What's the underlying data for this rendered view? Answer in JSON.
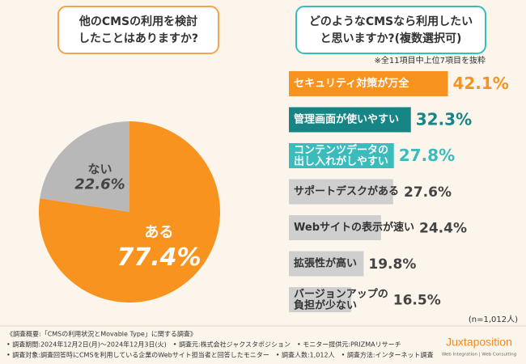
{
  "chart_data": [
    {
      "type": "pie",
      "title": [
        "他のCMSの利用を検討",
        "したことはありますか?"
      ],
      "categories": [
        "ある",
        "ない"
      ],
      "values": [
        77.4,
        22.6
      ],
      "value_labels": [
        "77.4%",
        "22.6%"
      ],
      "colors": [
        "#f7931e",
        "#b8b8b8"
      ]
    },
    {
      "type": "hbar",
      "title": [
        "どのようなCMSなら利用したい",
        "と思いますか?(複数選択可)"
      ],
      "note": "※全11項目中上位7項目を抜粋",
      "categories": [
        "セキュリティ対策が万全",
        "管理画面が使いやすい",
        "コンテンツデータの\n出し入れがしやすい",
        "サポートデスクがある",
        "Webサイトの表示が速い",
        "拡張性が高い",
        "バージョンアップの\n負担が少ない"
      ],
      "values": [
        42.1,
        32.3,
        27.8,
        27.6,
        24.4,
        19.8,
        16.5
      ],
      "value_labels": [
        "42.1%",
        "32.3%",
        "27.8%",
        "27.6%",
        "24.4%",
        "19.8%",
        "16.5%"
      ],
      "colors": [
        "#f7931e",
        "#178585",
        "#3bbcbc",
        "#cfcfcf",
        "#cfcfcf",
        "#cfcfcf",
        "#cfcfcf"
      ],
      "xlim": [
        0,
        45
      ],
      "sample": "(n=1,012人)"
    }
  ],
  "footer": [
    "《調査概要:「CMSの利用状況とMovable Type」に関する調査》",
    "• 調査期間:2024年12月2日(月)〜2024年12月3日(火)　• 調査元:株式会社ジャクスタポジション　• モニター提供元:PRIZMAリサーチ",
    "• 調査対象:調査回答時にCMSを利用している企業のWebサイト担当者と回答したモニター　• 調査人数:1,012人　• 調査方法:インターネット調査"
  ],
  "logo": {
    "name": "Juxtaposition",
    "tagline": "Web Integration | Web Consulting"
  }
}
